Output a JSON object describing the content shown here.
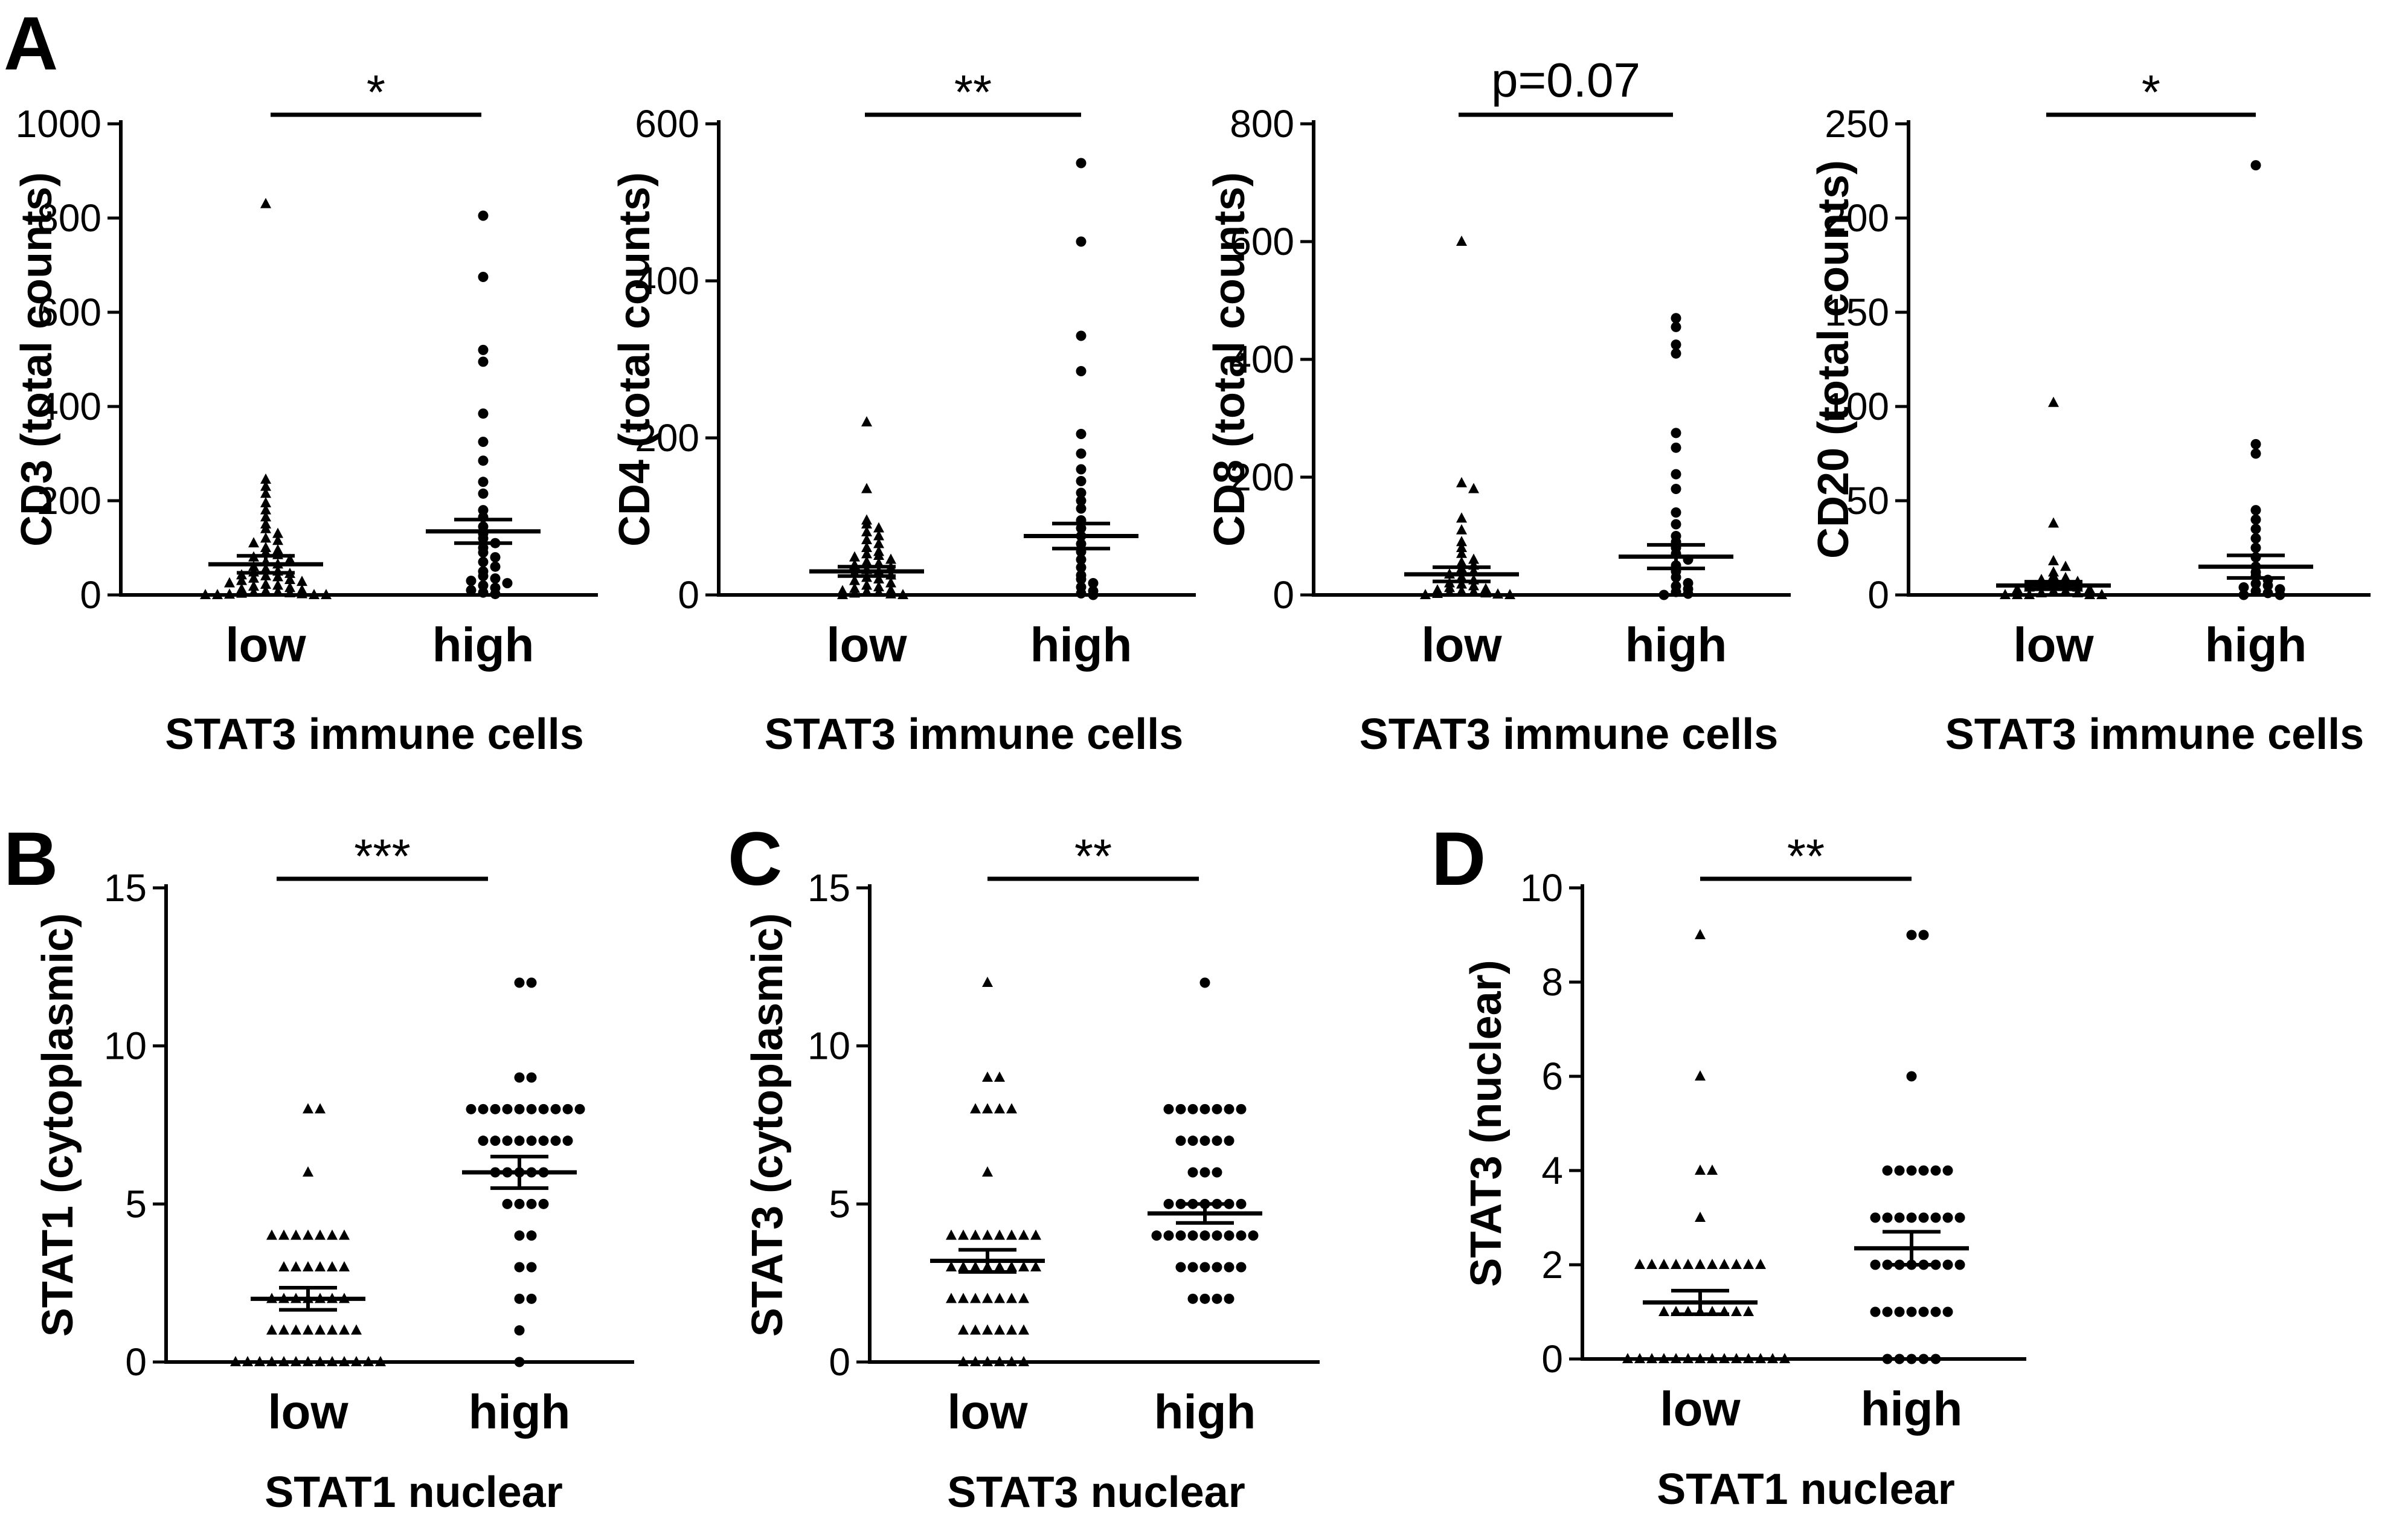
{
  "panels": [
    {
      "letter": "A"
    },
    {
      "letter": "B"
    },
    {
      "letter": "C"
    },
    {
      "letter": "D"
    }
  ],
  "chart_data": [
    {
      "type": "scatter",
      "subtype": "dot-plot with mean ± SEM",
      "panel": "A",
      "ylabel": "CD3 (total counts)",
      "xlabel": "STAT3 immune cells",
      "categories": [
        "low",
        "high"
      ],
      "ylim": [
        0,
        1000
      ],
      "yticks": [
        "0",
        "200",
        "400",
        "600",
        "800",
        "1000"
      ],
      "significance": "*",
      "markers": [
        "triangle",
        "circle"
      ],
      "series": [
        {
          "name": "low",
          "mean": 65,
          "sem": 18,
          "values": [
            830,
            245,
            230,
            215,
            195,
            180,
            165,
            150,
            140,
            130,
            120,
            115,
            110,
            100,
            95,
            90,
            85,
            80,
            75,
            70,
            65,
            60,
            55,
            50,
            48,
            45,
            42,
            40,
            38,
            35,
            32,
            30,
            28,
            25,
            22,
            20,
            18,
            15,
            12,
            10,
            8,
            6,
            5,
            4,
            3,
            2,
            1,
            0,
            0,
            0,
            0
          ]
        },
        {
          "name": "high",
          "mean": 135,
          "sem": 25,
          "values": [
            805,
            675,
            520,
            495,
            385,
            325,
            285,
            240,
            215,
            180,
            165,
            145,
            130,
            120,
            110,
            100,
            90,
            80,
            70,
            60,
            50,
            40,
            35,
            30,
            25,
            20,
            15,
            10,
            5,
            2
          ]
        }
      ]
    },
    {
      "type": "scatter",
      "subtype": "dot-plot with mean ± SEM",
      "panel": "A",
      "ylabel": "CD4 (total counts)",
      "xlabel": "STAT3 immune cells",
      "categories": [
        "low",
        "high"
      ],
      "ylim": [
        0,
        600
      ],
      "yticks": [
        "0",
        "200",
        "400",
        "600"
      ],
      "significance": "**",
      "markers": [
        "triangle",
        "circle"
      ],
      "series": [
        {
          "name": "low",
          "mean": 30,
          "sem": 6,
          "values": [
            220,
            135,
            95,
            90,
            85,
            80,
            75,
            70,
            65,
            60,
            55,
            52,
            50,
            48,
            45,
            42,
            40,
            38,
            35,
            32,
            30,
            28,
            25,
            22,
            20,
            18,
            15,
            12,
            10,
            8,
            6,
            5,
            4,
            3,
            2,
            1,
            0,
            0
          ]
        },
        {
          "name": "high",
          "mean": 75,
          "sem": 16,
          "values": [
            550,
            450,
            330,
            285,
            205,
            180,
            160,
            145,
            130,
            120,
            110,
            95,
            85,
            75,
            65,
            55,
            45,
            35,
            25,
            20,
            15,
            10,
            5,
            2,
            0
          ]
        }
      ]
    },
    {
      "type": "scatter",
      "subtype": "dot-plot with mean ± SEM",
      "panel": "A",
      "ylabel": "CD8 (total counts)",
      "xlabel": "STAT3 immune cells",
      "categories": [
        "low",
        "high"
      ],
      "ylim": [
        0,
        800
      ],
      "yticks": [
        "0",
        "200",
        "400",
        "600",
        "800"
      ],
      "significance": "p=0.07",
      "markers": [
        "triangle",
        "circle"
      ],
      "series": [
        {
          "name": "low",
          "mean": 35,
          "sem": 12,
          "values": [
            600,
            190,
            180,
            130,
            110,
            90,
            80,
            70,
            60,
            55,
            50,
            45,
            40,
            35,
            30,
            25,
            20,
            18,
            15,
            12,
            10,
            8,
            6,
            5,
            4,
            3,
            2,
            1,
            0,
            0
          ]
        },
        {
          "name": "high",
          "mean": 65,
          "sem": 20,
          "values": [
            470,
            455,
            425,
            410,
            275,
            250,
            205,
            180,
            140,
            120,
            100,
            90,
            80,
            70,
            60,
            50,
            40,
            30,
            20,
            15,
            10,
            5,
            2,
            0
          ]
        }
      ]
    },
    {
      "type": "scatter",
      "subtype": "dot-plot with mean ± SEM",
      "panel": "A",
      "ylabel": "CD20 (total counts)",
      "xlabel": "STAT3 immune cells",
      "categories": [
        "low",
        "high"
      ],
      "ylim": [
        0,
        250
      ],
      "yticks": [
        "0",
        "50",
        "100",
        "150",
        "200",
        "250"
      ],
      "significance": "*",
      "markers": [
        "triangle",
        "circle"
      ],
      "series": [
        {
          "name": "low",
          "mean": 5,
          "sem": 2,
          "values": [
            102,
            38,
            18,
            15,
            12,
            10,
            9,
            8,
            7,
            6,
            5,
            5,
            4,
            4,
            3,
            3,
            2,
            2,
            1,
            1,
            0,
            0,
            0,
            0,
            0
          ]
        },
        {
          "name": "high",
          "mean": 15,
          "sem": 6,
          "values": [
            228,
            80,
            75,
            45,
            40,
            35,
            30,
            25,
            20,
            15,
            12,
            10,
            8,
            6,
            5,
            4,
            3,
            2,
            1,
            0,
            0
          ]
        }
      ]
    },
    {
      "type": "scatter",
      "subtype": "dot-plot with mean ± SEM",
      "panel": "B",
      "ylabel": "STAT1 (cytoplasmic)",
      "xlabel": "STAT1 nuclear",
      "categories": [
        "low",
        "high"
      ],
      "ylim": [
        0,
        15
      ],
      "yticks": [
        "0",
        "5",
        "10",
        "15"
      ],
      "significance": "***",
      "markers": [
        "triangle",
        "circle"
      ],
      "series": [
        {
          "name": "low",
          "mean": 2.0,
          "sem": 0.35,
          "values": [
            8,
            8,
            6,
            4,
            4,
            4,
            4,
            4,
            4,
            4,
            3,
            3,
            3,
            3,
            3,
            3,
            2,
            2,
            2,
            2,
            2,
            2,
            2,
            1,
            1,
            1,
            1,
            1,
            1,
            1,
            1,
            0,
            0,
            0,
            0,
            0,
            0,
            0,
            0,
            0,
            0,
            0,
            0,
            0
          ]
        },
        {
          "name": "high",
          "mean": 6.0,
          "sem": 0.5,
          "values": [
            12,
            12,
            9,
            9,
            8,
            8,
            8,
            8,
            8,
            8,
            8,
            8,
            8,
            8,
            7,
            7,
            7,
            7,
            7,
            7,
            7,
            7,
            6,
            6,
            6,
            6,
            6,
            5,
            5,
            5,
            5,
            4,
            4,
            3,
            3,
            2,
            2,
            1,
            0
          ]
        }
      ]
    },
    {
      "type": "scatter",
      "subtype": "dot-plot with mean ± SEM",
      "panel": "C",
      "ylabel": "STAT3 (cytoplasmic)",
      "xlabel": "STAT3 nuclear",
      "categories": [
        "low",
        "high"
      ],
      "ylim": [
        0,
        15
      ],
      "yticks": [
        "0",
        "5",
        "10",
        "15"
      ],
      "significance": "**",
      "markers": [
        "triangle",
        "circle"
      ],
      "series": [
        {
          "name": "low",
          "mean": 3.2,
          "sem": 0.35,
          "values": [
            12,
            9,
            9,
            8,
            8,
            8,
            8,
            6,
            4,
            4,
            4,
            4,
            4,
            4,
            4,
            4,
            3,
            3,
            3,
            3,
            3,
            3,
            3,
            3,
            2,
            2,
            2,
            2,
            2,
            2,
            2,
            1,
            1,
            1,
            1,
            1,
            1,
            0,
            0,
            0,
            0,
            0,
            0
          ]
        },
        {
          "name": "high",
          "mean": 4.7,
          "sem": 0.3,
          "values": [
            12,
            8,
            8,
            8,
            8,
            8,
            8,
            8,
            7,
            7,
            7,
            7,
            7,
            6,
            6,
            6,
            5,
            5,
            5,
            5,
            5,
            5,
            5,
            4,
            4,
            4,
            4,
            4,
            4,
            4,
            4,
            4,
            3,
            3,
            3,
            3,
            3,
            3,
            2,
            2,
            2,
            2
          ]
        }
      ]
    },
    {
      "type": "scatter",
      "subtype": "dot-plot with mean ± SEM",
      "panel": "D",
      "ylabel": "STAT3 (nuclear)",
      "xlabel": "STAT1 nuclear",
      "categories": [
        "low",
        "high"
      ],
      "ylim": [
        0,
        10
      ],
      "yticks": [
        "0",
        "2",
        "4",
        "6",
        "8",
        "10"
      ],
      "significance": "**",
      "markers": [
        "triangle",
        "circle"
      ],
      "series": [
        {
          "name": "low",
          "mean": 1.2,
          "sem": 0.25,
          "values": [
            9,
            6,
            4,
            4,
            3,
            2,
            2,
            2,
            2,
            2,
            2,
            2,
            2,
            2,
            2,
            2,
            1,
            1,
            1,
            1,
            1,
            1,
            1,
            1,
            0,
            0,
            0,
            0,
            0,
            0,
            0,
            0,
            0,
            0,
            0,
            0,
            0,
            0
          ]
        },
        {
          "name": "high",
          "mean": 2.35,
          "sem": 0.35,
          "values": [
            9,
            9,
            6,
            4,
            4,
            4,
            4,
            4,
            4,
            3,
            3,
            3,
            3,
            3,
            3,
            3,
            3,
            2,
            2,
            2,
            2,
            2,
            2,
            2,
            2,
            1,
            1,
            1,
            1,
            1,
            1,
            1,
            0,
            0,
            0,
            0,
            0
          ]
        }
      ]
    }
  ]
}
